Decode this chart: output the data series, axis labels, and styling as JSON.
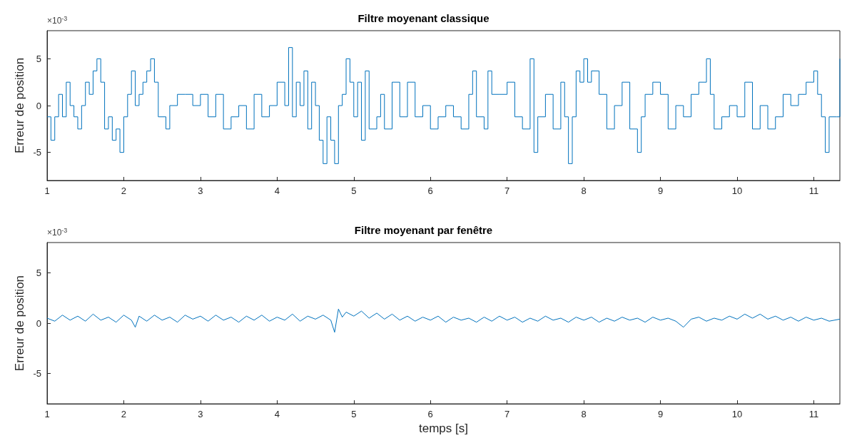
{
  "chart_data": [
    {
      "type": "step",
      "title": "Filtre moyenant classique",
      "ylabel": "Erreur de position",
      "annotations": [
        "×10$^{-3}$"
      ],
      "xlim": [
        1,
        11.34
      ],
      "xticks": [
        1,
        2,
        3,
        4,
        5,
        6,
        7,
        8,
        9,
        10,
        11
      ],
      "ylim": [
        -8,
        8
      ],
      "yticks": [
        -5,
        0,
        5
      ],
      "grid": false,
      "marker": "none",
      "line_style": "solid",
      "series": [
        {
          "color": "#0072bd",
          "x": [
            1.0,
            1.05,
            1.1,
            1.15,
            1.2,
            1.25,
            1.3,
            1.35,
            1.4,
            1.45,
            1.5,
            1.55,
            1.6,
            1.65,
            1.7,
            1.75,
            1.8,
            1.85,
            1.9,
            1.95,
            2.0,
            2.05,
            2.1,
            2.15,
            2.2,
            2.25,
            2.3,
            2.35,
            2.4,
            2.45,
            2.55,
            2.6,
            2.7,
            2.8,
            2.9,
            3.0,
            3.1,
            3.2,
            3.3,
            3.4,
            3.5,
            3.6,
            3.7,
            3.8,
            3.9,
            4.0,
            4.1,
            4.15,
            4.2,
            4.25,
            4.3,
            4.35,
            4.4,
            4.45,
            4.5,
            4.55,
            4.6,
            4.65,
            4.7,
            4.75,
            4.8,
            4.85,
            4.9,
            4.95,
            5.0,
            5.05,
            5.1,
            5.15,
            5.2,
            5.3,
            5.35,
            5.4,
            5.5,
            5.6,
            5.7,
            5.8,
            5.9,
            6.0,
            6.1,
            6.2,
            6.3,
            6.4,
            6.5,
            6.55,
            6.6,
            6.7,
            6.75,
            6.8,
            6.9,
            7.0,
            7.1,
            7.2,
            7.3,
            7.35,
            7.4,
            7.5,
            7.6,
            7.7,
            7.75,
            7.8,
            7.85,
            7.9,
            7.95,
            8.0,
            8.05,
            8.1,
            8.2,
            8.3,
            8.4,
            8.5,
            8.6,
            8.7,
            8.75,
            8.8,
            8.9,
            9.0,
            9.1,
            9.2,
            9.3,
            9.4,
            9.5,
            9.6,
            9.65,
            9.7,
            9.8,
            9.9,
            10.0,
            10.1,
            10.2,
            10.3,
            10.4,
            10.5,
            10.6,
            10.7,
            10.8,
            10.9,
            11.0,
            11.05,
            11.1,
            11.15,
            11.2,
            11.3,
            11.34
          ],
          "values": [
            -1.2,
            -3.7,
            -1.2,
            1.2,
            -1.2,
            2.5,
            0,
            -1.2,
            -2.5,
            0,
            2.5,
            1.2,
            3.7,
            5,
            2.5,
            -2.5,
            -1.2,
            -3.7,
            -2.5,
            -5,
            -1.2,
            1.2,
            3.7,
            0,
            1.2,
            2.5,
            3.7,
            5,
            2.5,
            -1.2,
            -2.5,
            0,
            1.2,
            1.2,
            0,
            1.2,
            -1.2,
            1.2,
            -2.5,
            -1.2,
            0,
            -2.5,
            1.2,
            -1.2,
            0,
            2.5,
            0,
            6.2,
            -1.2,
            2.5,
            0,
            3.7,
            -2.5,
            2.5,
            0,
            -3.7,
            -6.2,
            -1.2,
            -3.7,
            -6.2,
            0,
            1.2,
            5,
            2.5,
            -1.2,
            2.5,
            -3.7,
            3.7,
            -2.5,
            -1.2,
            1.2,
            -2.5,
            2.5,
            -1.2,
            2.5,
            -1.2,
            0,
            -2.5,
            -1.2,
            0,
            -1.2,
            -2.5,
            1.2,
            3.7,
            -1.2,
            -2.5,
            3.7,
            1.2,
            1.2,
            2.5,
            -1.2,
            -2.5,
            5,
            -5,
            -1.2,
            1.2,
            -2.5,
            2.5,
            -1.2,
            -6.2,
            -1.2,
            3.7,
            2.5,
            5,
            2.5,
            3.7,
            1.2,
            -2.5,
            0,
            2.5,
            -2.5,
            -5,
            -1.2,
            1.2,
            2.5,
            1.2,
            -2.5,
            0,
            -1.2,
            1.2,
            2.5,
            5,
            1.2,
            -2.5,
            -1.2,
            0,
            -1.2,
            2.5,
            -2.5,
            0,
            -2.5,
            -1.2,
            1.2,
            0,
            1.2,
            2.5,
            3.7,
            1.2,
            -1.2,
            -5,
            -1.2,
            -1.2,
            5
          ]
        }
      ]
    },
    {
      "type": "line",
      "title": "Filtre moyenant par fenêtre",
      "xlabel": "temps [s]",
      "ylabel": "Erreur de position",
      "annotations": [
        "×10$^{-3}$"
      ],
      "xlim": [
        1,
        11.34
      ],
      "xticks": [
        1,
        2,
        3,
        4,
        5,
        6,
        7,
        8,
        9,
        10,
        11
      ],
      "ylim": [
        -8,
        8
      ],
      "yticks": [
        -5,
        0,
        5
      ],
      "grid": false,
      "marker": "none",
      "line_style": "solid",
      "series": [
        {
          "color": "#0072bd",
          "x": [
            1.0,
            1.1,
            1.2,
            1.3,
            1.4,
            1.5,
            1.6,
            1.7,
            1.8,
            1.9,
            2.0,
            2.1,
            2.15,
            2.2,
            2.3,
            2.4,
            2.5,
            2.6,
            2.7,
            2.8,
            2.9,
            3.0,
            3.1,
            3.2,
            3.3,
            3.4,
            3.5,
            3.6,
            3.7,
            3.8,
            3.9,
            4.0,
            4.1,
            4.2,
            4.3,
            4.4,
            4.5,
            4.6,
            4.7,
            4.75,
            4.8,
            4.85,
            4.9,
            5.0,
            5.1,
            5.2,
            5.3,
            5.4,
            5.5,
            5.6,
            5.7,
            5.8,
            5.9,
            6.0,
            6.1,
            6.2,
            6.3,
            6.4,
            6.5,
            6.6,
            6.7,
            6.8,
            6.9,
            7.0,
            7.1,
            7.2,
            7.3,
            7.4,
            7.5,
            7.6,
            7.7,
            7.8,
            7.9,
            8.0,
            8.1,
            8.2,
            8.3,
            8.4,
            8.5,
            8.6,
            8.7,
            8.8,
            8.9,
            9.0,
            9.1,
            9.2,
            9.3,
            9.4,
            9.5,
            9.6,
            9.7,
            9.8,
            9.9,
            10.0,
            10.1,
            10.2,
            10.3,
            10.4,
            10.5,
            10.6,
            10.7,
            10.8,
            10.9,
            11.0,
            11.1,
            11.2,
            11.34
          ],
          "values": [
            0.5,
            0.2,
            0.8,
            0.3,
            0.7,
            0.2,
            0.9,
            0.3,
            0.6,
            0.1,
            0.8,
            0.3,
            -0.4,
            0.7,
            0.2,
            0.8,
            0.3,
            0.6,
            0.1,
            0.8,
            0.4,
            0.7,
            0.2,
            0.8,
            0.3,
            0.6,
            0.1,
            0.7,
            0.3,
            0.8,
            0.2,
            0.6,
            0.3,
            0.9,
            0.2,
            0.7,
            0.4,
            0.8,
            0.3,
            -0.9,
            1.4,
            0.6,
            1.1,
            0.7,
            1.2,
            0.5,
            1.0,
            0.4,
            0.9,
            0.3,
            0.7,
            0.2,
            0.6,
            0.3,
            0.7,
            0.1,
            0.6,
            0.3,
            0.5,
            0.1,
            0.6,
            0.2,
            0.7,
            0.3,
            0.6,
            0.1,
            0.5,
            0.2,
            0.7,
            0.3,
            0.5,
            0.1,
            0.6,
            0.3,
            0.6,
            0.1,
            0.5,
            0.2,
            0.6,
            0.3,
            0.5,
            0.1,
            0.6,
            0.3,
            0.5,
            0.2,
            -0.4,
            0.4,
            0.6,
            0.2,
            0.5,
            0.3,
            0.7,
            0.4,
            0.9,
            0.5,
            0.9,
            0.4,
            0.7,
            0.3,
            0.6,
            0.2,
            0.6,
            0.3,
            0.5,
            0.2,
            0.4
          ]
        }
      ]
    }
  ]
}
